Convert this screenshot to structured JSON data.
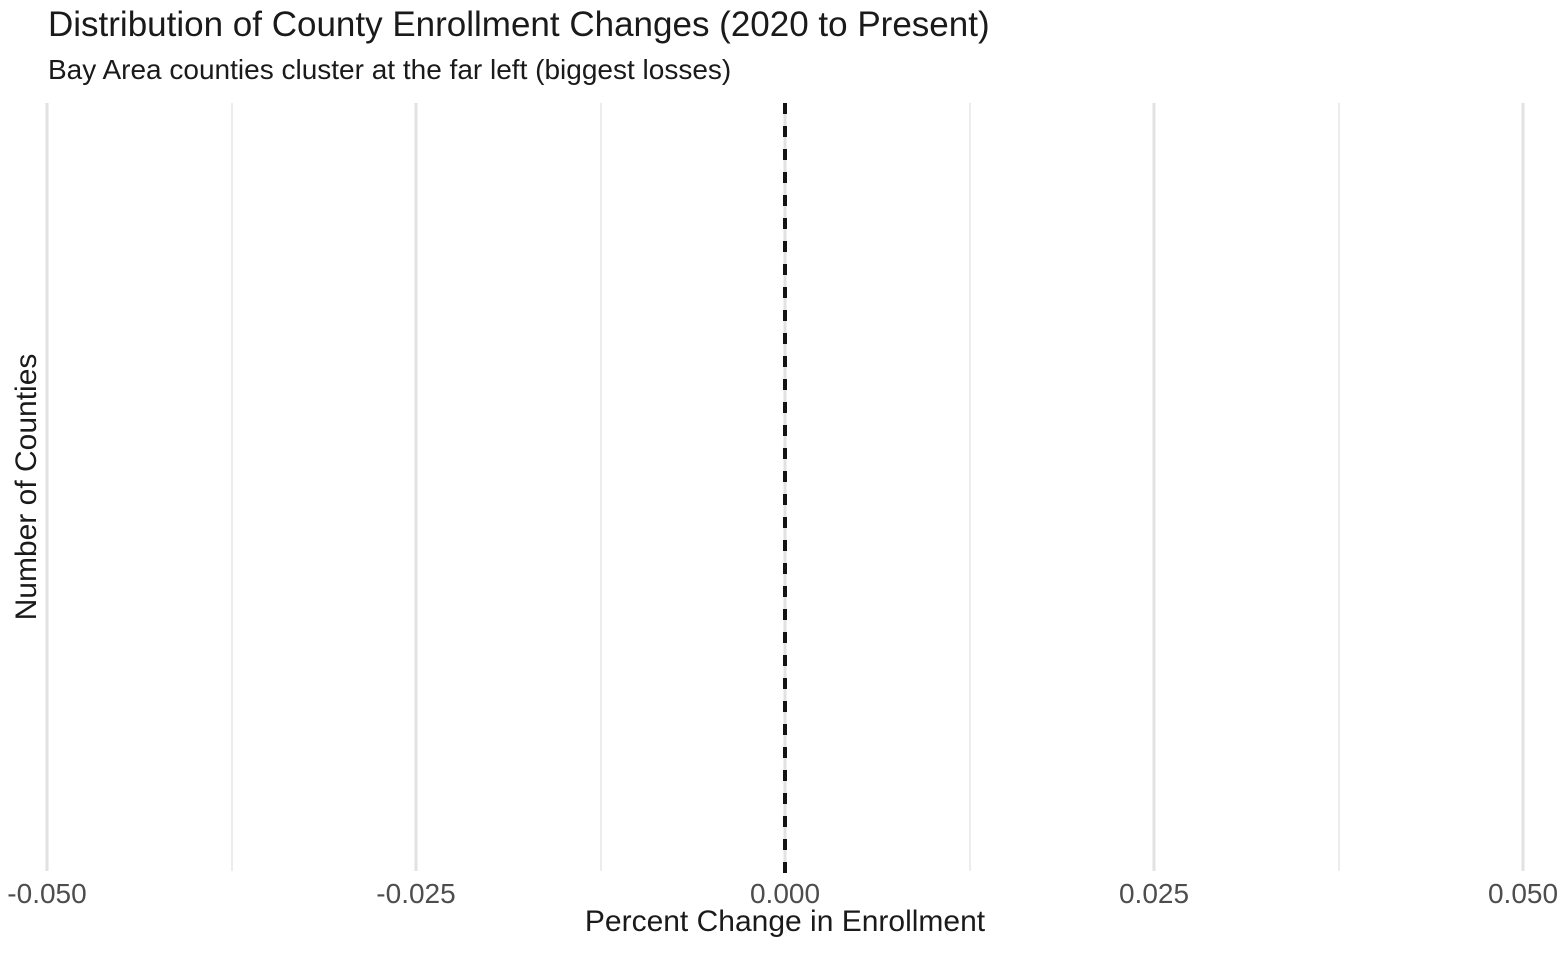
{
  "colors": {
    "background": "#ffffff",
    "title_text": "#1a1a1a",
    "axis_title_text": "#1a1a1a",
    "tick_label_text": "#4d4d4d",
    "grid_major": "#e2e2e2",
    "grid_minor": "#ececec",
    "reference_line": "#141414"
  },
  "chart_data": {
    "type": "bar",
    "subtype": "histogram",
    "title": "Distribution of County Enrollment Changes (2020 to Present)",
    "subtitle": "Bay Area counties cluster at the far left (biggest losses)",
    "xlabel": "Percent Change in Enrollment",
    "ylabel": "Number of Counties",
    "xlim": [
      -0.0532,
      0.0532
    ],
    "x_major_ticks": [
      -0.05,
      -0.025,
      0,
      0.025,
      0.05
    ],
    "x_tick_labels": [
      "-0.050",
      "-0.025",
      "0.000",
      "0.025",
      "0.050"
    ],
    "x_minor_gridlines": [
      -0.0375,
      -0.0125,
      0.0125,
      0.0375
    ],
    "y_tick_labels": [],
    "grid": "vertical-only",
    "legend": "none",
    "series": [],
    "values": [],
    "bars_visible": false,
    "reference_line": {
      "x": 0,
      "orientation": "vertical",
      "style": "dashed"
    }
  }
}
